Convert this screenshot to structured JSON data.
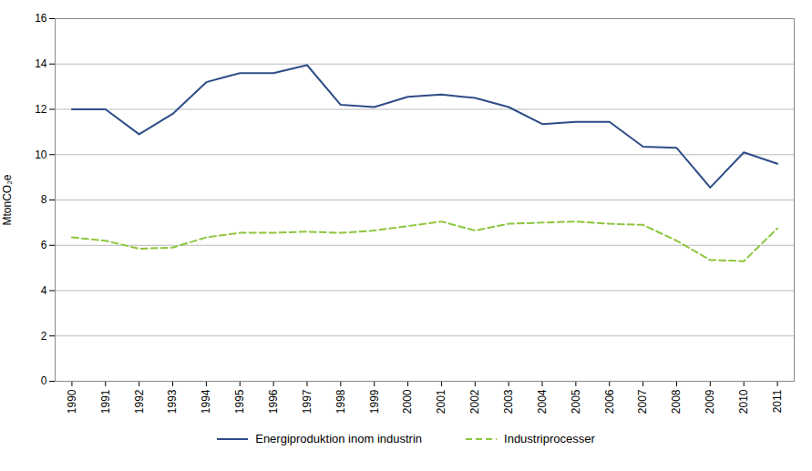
{
  "chart_data": {
    "type": "line",
    "x": [
      1990,
      1991,
      1992,
      1993,
      1994,
      1995,
      1996,
      1997,
      1998,
      1999,
      2000,
      2001,
      2002,
      2003,
      2004,
      2005,
      2006,
      2007,
      2008,
      2009,
      2010,
      2011
    ],
    "series": [
      {
        "name": "Energiproduktion inom industrin",
        "color": "#2E4D87",
        "line_style": "solid",
        "values": [
          12.0,
          12.0,
          10.9,
          11.8,
          13.2,
          13.6,
          13.6,
          13.95,
          12.2,
          12.1,
          12.55,
          12.65,
          12.5,
          12.1,
          11.35,
          11.45,
          11.45,
          10.35,
          10.3,
          8.55,
          10.1,
          9.6
        ]
      },
      {
        "name": "Industriprocesser",
        "color": "#8DC63F",
        "line_style": "dashed",
        "values": [
          6.35,
          6.2,
          5.85,
          5.9,
          6.35,
          6.55,
          6.55,
          6.6,
          6.55,
          6.65,
          6.85,
          7.05,
          6.65,
          6.95,
          7.0,
          7.05,
          6.95,
          6.9,
          6.2,
          5.35,
          5.3,
          6.75
        ]
      }
    ],
    "y_label": "MtonCO₂e",
    "xlim": [
      1989.5,
      2011.5
    ],
    "xticks": [
      1990,
      1991,
      1992,
      1993,
      1994,
      1995,
      1996,
      1997,
      1998,
      1999,
      2000,
      2001,
      2002,
      2003,
      2004,
      2005,
      2006,
      2007,
      2008,
      2009,
      2010,
      2011
    ],
    "ylim": [
      0,
      16
    ],
    "yticks": [
      0,
      2,
      4,
      6,
      8,
      10,
      12,
      14,
      16
    ],
    "grid": true,
    "legend": "bottom"
  }
}
